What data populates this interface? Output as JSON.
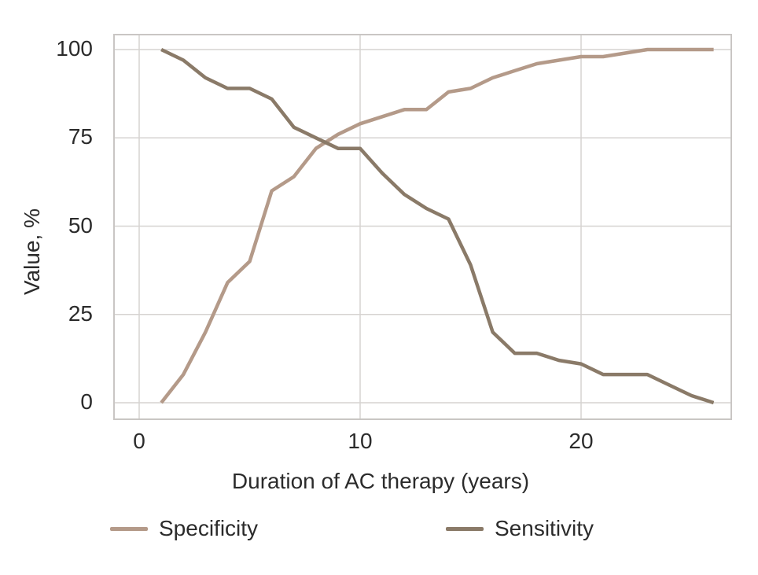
{
  "chart_data": {
    "type": "line",
    "title": "",
    "xlabel": "Duration of AC therapy (years)",
    "ylabel": "Value, %",
    "x": [
      1,
      2,
      3,
      4,
      5,
      6,
      7,
      8,
      9,
      10,
      11,
      12,
      13,
      14,
      15,
      16,
      17,
      18,
      19,
      20,
      21,
      22,
      23,
      24,
      25,
      26
    ],
    "series": [
      {
        "name": "Specificity",
        "color": "#b49a89",
        "values": [
          0,
          8,
          20,
          34,
          40,
          60,
          64,
          72,
          76,
          79,
          81,
          83,
          83,
          88,
          89,
          92,
          94,
          96,
          97,
          98,
          98,
          99,
          100,
          100,
          100,
          100
        ]
      },
      {
        "name": "Sensitivity",
        "color": "#8a7a68",
        "values": [
          100,
          97,
          92,
          89,
          89,
          86,
          78,
          75,
          72,
          72,
          65,
          59,
          55,
          52,
          39,
          20,
          14,
          14,
          12,
          11,
          8,
          8,
          8,
          5,
          2,
          0
        ]
      }
    ],
    "x_ticks": [
      0,
      10,
      20
    ],
    "y_ticks": [
      100,
      75,
      50,
      25,
      0
    ],
    "xlim": [
      -1.14,
      26.8
    ],
    "ylim": [
      -4.7,
      104.2
    ],
    "grid": true,
    "grid_color": "#d6d3d1",
    "border_color": "#c9c6c4",
    "background_color": "#ffffff",
    "legend_position": "bottom"
  }
}
